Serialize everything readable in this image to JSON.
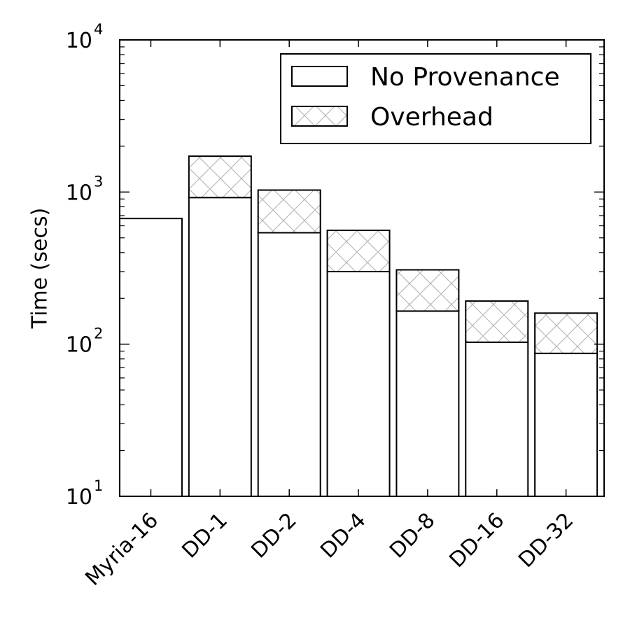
{
  "chart_data": {
    "type": "bar",
    "stacked": true,
    "yscale": "log",
    "ylim": [
      10,
      10000
    ],
    "ylabel": "Time (secs)",
    "categories": [
      "Myria-16",
      "DD-1",
      "DD-2",
      "DD-4",
      "DD-8",
      "DD-16",
      "DD-32"
    ],
    "series": [
      {
        "name": "No Provenance",
        "values": [
          670,
          920,
          540,
          300,
          165,
          103,
          87
        ]
      },
      {
        "name": "Overhead",
        "values": [
          0,
          800,
          490,
          260,
          143,
          89,
          73
        ]
      }
    ],
    "y_ticks": [
      {
        "base": "10",
        "exp": "1"
      },
      {
        "base": "10",
        "exp": "2"
      },
      {
        "base": "10",
        "exp": "3"
      },
      {
        "base": "10",
        "exp": "4"
      }
    ],
    "legend_position": "top-right",
    "grid": false
  }
}
